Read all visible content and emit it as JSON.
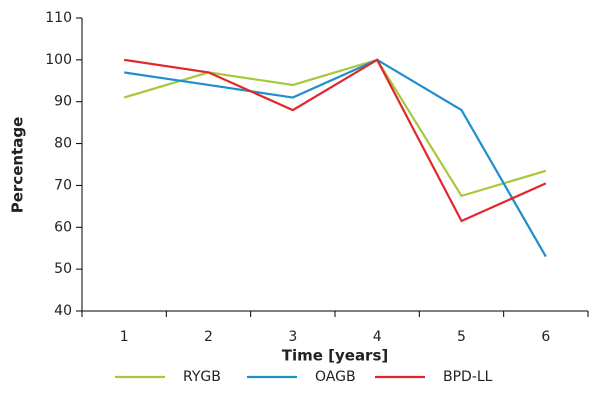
{
  "chart_data": {
    "type": "line",
    "categories": [
      "1",
      "2",
      "3",
      "4",
      "5",
      "6"
    ],
    "series": [
      {
        "name": "RYGB",
        "color": "#a6c83c",
        "values": [
          91,
          97,
          94,
          100,
          67.5,
          73.5
        ]
      },
      {
        "name": "OAGB",
        "color": "#1e8fca",
        "values": [
          97,
          94,
          91,
          100,
          88,
          53
        ]
      },
      {
        "name": "BPD-LL",
        "color": "#e2262c",
        "values": [
          100,
          97,
          88,
          100,
          61.5,
          70.5
        ]
      }
    ],
    "x_label": "Time [years]",
    "y_label": "Percentage",
    "ylim": [
      40,
      110
    ],
    "yticks": [
      40,
      50,
      60,
      70,
      80,
      90,
      100,
      110
    ],
    "grid": false,
    "legend": "bottom"
  }
}
